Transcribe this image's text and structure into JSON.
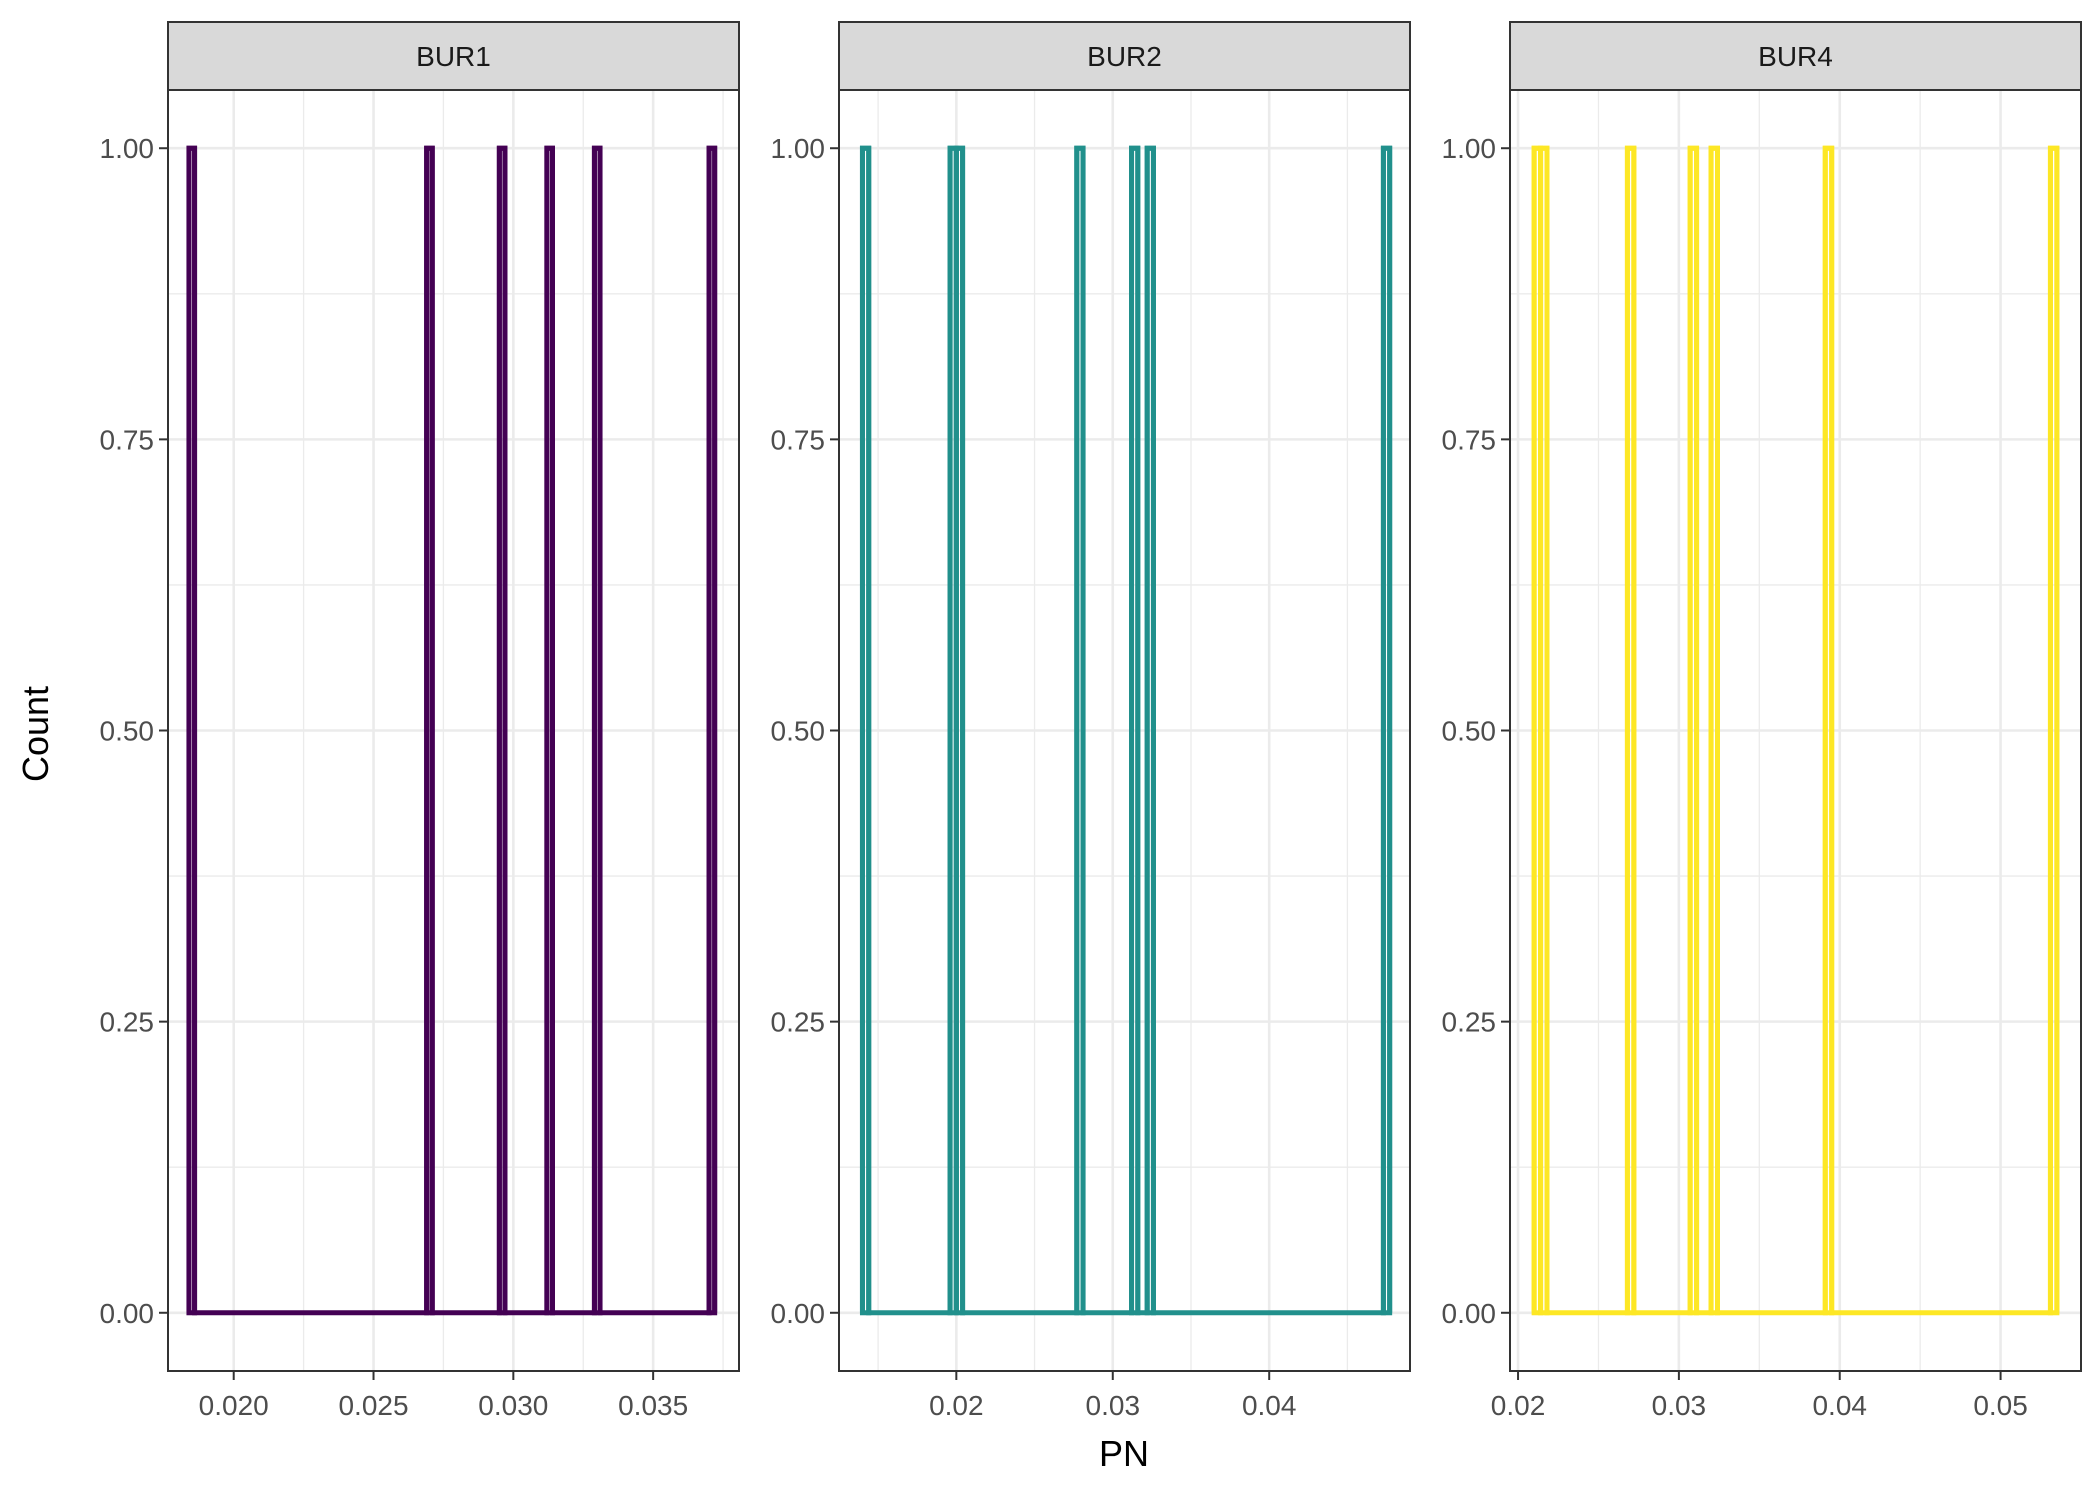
{
  "chart_data": {
    "type": "histogram-facets",
    "xlabel": "PN",
    "ylabel": "Count",
    "y_ticks": [
      0.0,
      0.25,
      0.5,
      0.75,
      1.0
    ],
    "y_tick_labels": [
      "0.00",
      "0.25",
      "0.50",
      "0.75",
      "1.00"
    ],
    "ylim": [
      -0.05,
      1.05
    ],
    "grid": true,
    "legend": "none",
    "panels": [
      {
        "label": "BUR1",
        "color": "#440154",
        "xlim": [
          0.01765,
          0.03807
        ],
        "x_ticks": [
          0.02,
          0.025,
          0.03,
          0.035
        ],
        "x_tick_labels": [
          "0.020",
          "0.025",
          "0.030",
          "0.035"
        ],
        "bin_range": [
          0.0184,
          0.0372
        ],
        "bars": [
          {
            "x0": 0.0184,
            "x1": 0.0186,
            "count": 1
          },
          {
            "x0": 0.0269,
            "x1": 0.0271,
            "count": 1
          },
          {
            "x0": 0.0295,
            "x1": 0.0297,
            "count": 1
          },
          {
            "x0": 0.0312,
            "x1": 0.0314,
            "count": 1
          },
          {
            "x0": 0.0329,
            "x1": 0.0331,
            "count": 1
          },
          {
            "x0": 0.037,
            "x1": 0.0372,
            "count": 1
          }
        ]
      },
      {
        "label": "BUR2",
        "color": "#21908C",
        "xlim": [
          0.0125,
          0.049
        ],
        "x_ticks": [
          0.02,
          0.03,
          0.04
        ],
        "x_tick_labels": [
          "0.02",
          "0.03",
          "0.04"
        ],
        "bin_range": [
          0.014,
          0.0477
        ],
        "bars": [
          {
            "x0": 0.014,
            "x1": 0.0144,
            "count": 1
          },
          {
            "x0": 0.0196,
            "x1": 0.02,
            "count": 1
          },
          {
            "x0": 0.02,
            "x1": 0.0204,
            "count": 1
          },
          {
            "x0": 0.0277,
            "x1": 0.0281,
            "count": 1
          },
          {
            "x0": 0.0312,
            "x1": 0.0316,
            "count": 1
          },
          {
            "x0": 0.0322,
            "x1": 0.0326,
            "count": 1
          },
          {
            "x0": 0.0473,
            "x1": 0.0477,
            "count": 1
          }
        ]
      },
      {
        "label": "BUR4",
        "color": "#FDE725",
        "xlim": [
          0.0195,
          0.055
        ],
        "x_ticks": [
          0.02,
          0.03,
          0.04,
          0.05
        ],
        "x_tick_labels": [
          "0.02",
          "0.03",
          "0.04",
          "0.05"
        ],
        "bin_range": [
          0.021,
          0.0535
        ],
        "bars": [
          {
            "x0": 0.021,
            "x1": 0.0214,
            "count": 1
          },
          {
            "x0": 0.0214,
            "x1": 0.0218,
            "count": 1
          },
          {
            "x0": 0.0268,
            "x1": 0.0272,
            "count": 1
          },
          {
            "x0": 0.0307,
            "x1": 0.0311,
            "count": 1
          },
          {
            "x0": 0.032,
            "x1": 0.0324,
            "count": 1
          },
          {
            "x0": 0.0391,
            "x1": 0.0395,
            "count": 1
          },
          {
            "x0": 0.0531,
            "x1": 0.0535,
            "count": 1
          }
        ]
      }
    ]
  }
}
